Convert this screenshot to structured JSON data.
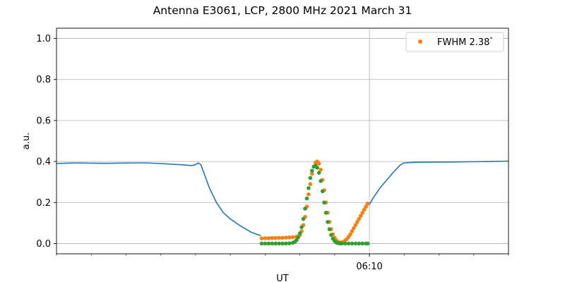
{
  "chart_data": {
    "type": "line",
    "title": "Antenna E3061, LCP, 2800 MHz 2021 March 31",
    "xlabel": "UT",
    "ylabel": "a.u.",
    "x_unit": "minutes UT",
    "xlim": [
      361.0,
      374.0
    ],
    "ylim": [
      -0.05,
      1.05
    ],
    "yticks": [
      0.0,
      0.2,
      0.4,
      0.6,
      0.8,
      1.0
    ],
    "ytick_labels": [
      "0.0",
      "0.2",
      "0.4",
      "0.6",
      "0.8",
      "1.0"
    ],
    "xticks_major": [
      370.0
    ],
    "xtick_labels": [
      "06:10"
    ],
    "xticks_minor": [
      361.0,
      362.0,
      363.0,
      364.0,
      365.0,
      366.0,
      367.0,
      368.0,
      369.0,
      371.0,
      372.0,
      373.0,
      374.0
    ],
    "grid": true,
    "legend_position": "top-right",
    "colors": {
      "line": "#1f77b4",
      "orange": "#ff7f0e",
      "green": "#2ca02c",
      "grid": "#b0b0b0"
    },
    "series": [
      {
        "kind": "line",
        "color": "#1f77b4",
        "x": [
          361.0,
          361.3,
          361.6,
          362.0,
          362.4,
          362.8,
          363.2,
          363.6,
          364.0,
          364.4,
          364.7,
          364.9,
          365.0,
          365.08,
          365.15,
          365.25,
          365.4,
          365.6,
          365.8,
          366.0,
          366.3,
          366.6,
          366.88,
          367.2,
          367.6,
          368.0,
          368.4,
          368.8,
          369.1,
          369.4,
          369.7,
          369.9,
          370.0,
          370.1,
          370.3,
          370.5,
          370.7,
          370.9,
          371.0,
          371.2,
          371.5,
          372.0,
          372.5,
          373.0,
          373.5,
          374.0
        ],
        "y": [
          0.39,
          0.392,
          0.393,
          0.392,
          0.391,
          0.392,
          0.393,
          0.393,
          0.39,
          0.386,
          0.383,
          0.38,
          0.385,
          0.393,
          0.385,
          0.34,
          0.27,
          0.2,
          0.15,
          0.12,
          0.085,
          0.055,
          0.038,
          null,
          null,
          null,
          null,
          null,
          null,
          null,
          null,
          null,
          0.19,
          0.22,
          0.27,
          0.31,
          0.35,
          0.385,
          0.393,
          0.395,
          0.397,
          0.397,
          0.398,
          0.399,
          0.4,
          0.402
        ]
      },
      {
        "kind": "scatter",
        "name": "FWHM 2.38$^\\circ$",
        "legend_label": "FWHM 2.38",
        "legend_sup": "°",
        "color": "#ff7f0e",
        "x": [
          366.9,
          367.0,
          367.1,
          367.2,
          367.3,
          367.4,
          367.5,
          367.6,
          367.7,
          367.8,
          367.9,
          367.95,
          368.0,
          368.05,
          368.1,
          368.15,
          368.2,
          368.25,
          368.3,
          368.35,
          368.4,
          368.45,
          368.5,
          368.55,
          368.6,
          368.65,
          368.7,
          368.75,
          368.8,
          368.85,
          368.9,
          368.95,
          369.0,
          369.05,
          369.1,
          369.15,
          369.2,
          369.25,
          369.3,
          369.35,
          369.4,
          369.45,
          369.5,
          369.55,
          369.6,
          369.65,
          369.7,
          369.75,
          369.8,
          369.85,
          369.9,
          369.95
        ],
        "y": [
          0.025,
          0.026,
          0.026,
          0.027,
          0.027,
          0.028,
          0.028,
          0.029,
          0.03,
          0.031,
          0.033,
          0.035,
          0.042,
          0.06,
          0.09,
          0.13,
          0.18,
          0.24,
          0.29,
          0.34,
          0.375,
          0.395,
          0.4,
          0.39,
          0.36,
          0.31,
          0.26,
          0.2,
          0.15,
          0.105,
          0.07,
          0.045,
          0.028,
          0.015,
          0.008,
          0.005,
          0.005,
          0.008,
          0.014,
          0.022,
          0.032,
          0.045,
          0.06,
          0.075,
          0.09,
          0.105,
          0.12,
          0.135,
          0.15,
          0.165,
          0.18,
          0.195
        ]
      },
      {
        "kind": "scatter",
        "color": "#2ca02c",
        "x": [
          366.9,
          367.0,
          367.1,
          367.2,
          367.3,
          367.4,
          367.5,
          367.6,
          367.7,
          367.8,
          367.85,
          367.9,
          367.95,
          368.0,
          368.05,
          368.1,
          368.15,
          368.2,
          368.25,
          368.3,
          368.35,
          368.4,
          368.45,
          368.5,
          368.55,
          368.6,
          368.65,
          368.7,
          368.75,
          368.8,
          368.85,
          368.9,
          368.95,
          369.0,
          369.05,
          369.1,
          369.15,
          369.2,
          369.3,
          369.4,
          369.5,
          369.6,
          369.7,
          369.8,
          369.9,
          369.95
        ],
        "y": [
          0.0,
          0.0,
          0.0,
          0.0,
          0.0,
          0.0,
          0.0,
          0.0,
          0.001,
          0.004,
          0.008,
          0.016,
          0.03,
          0.05,
          0.08,
          0.12,
          0.17,
          0.22,
          0.27,
          0.32,
          0.355,
          0.375,
          0.38,
          0.37,
          0.345,
          0.305,
          0.255,
          0.2,
          0.15,
          0.105,
          0.07,
          0.042,
          0.024,
          0.012,
          0.005,
          0.002,
          0.001,
          0.0,
          0.0,
          0.0,
          0.0,
          0.0,
          0.0,
          0.0,
          0.0,
          0.0
        ]
      }
    ]
  }
}
